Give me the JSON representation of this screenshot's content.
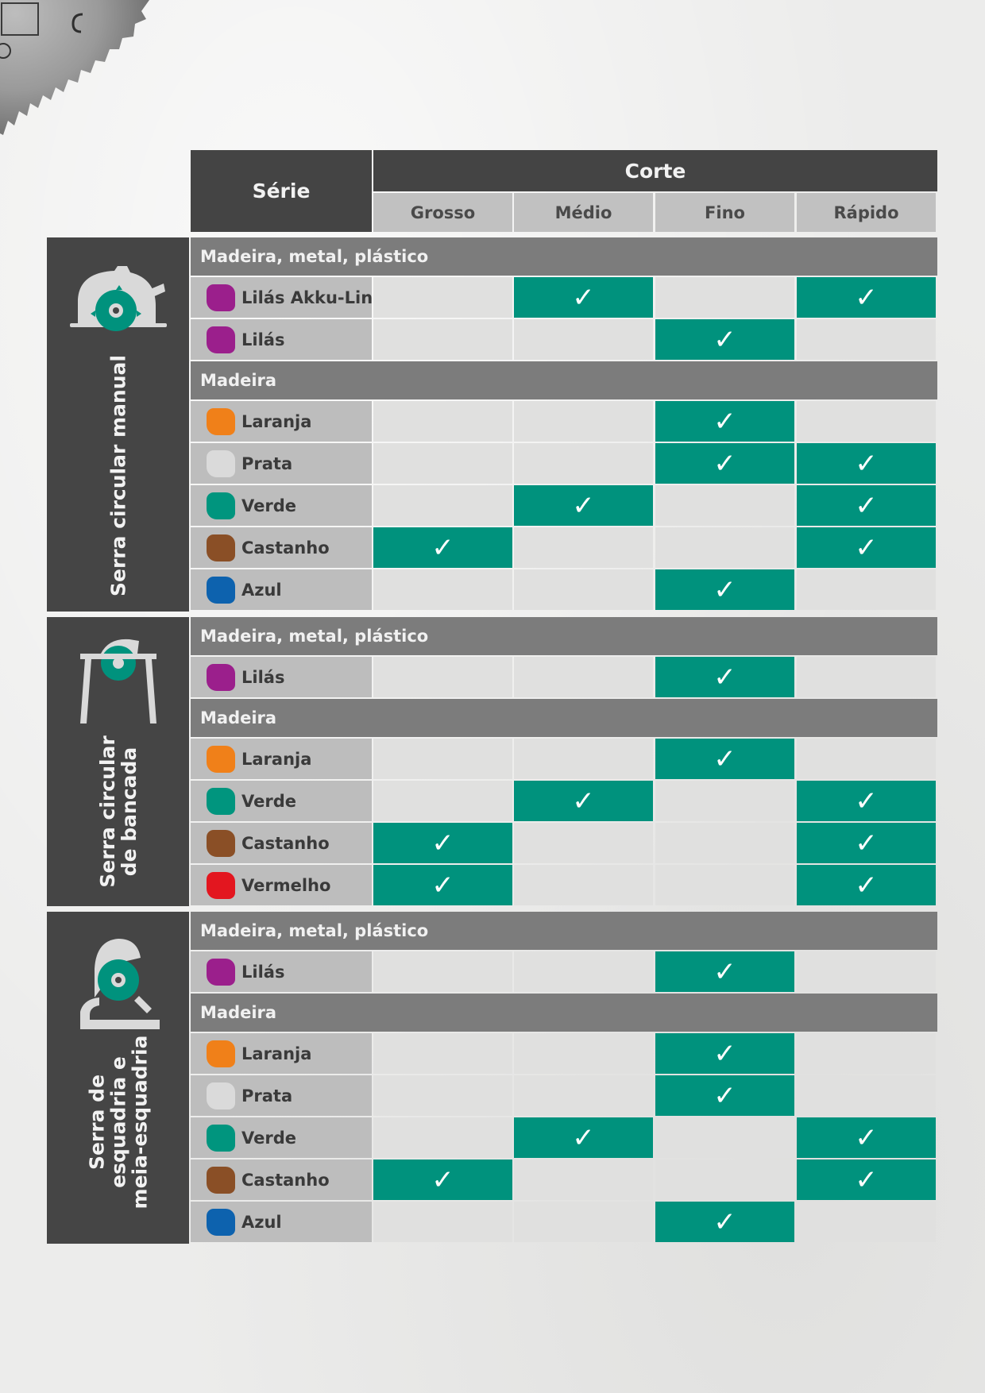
{
  "table": {
    "serie_header": "Série",
    "corte_header": "Corte",
    "cut_types": [
      "Grosso",
      "Médio",
      "Fino",
      "Rápido"
    ],
    "check_symbol": "✓"
  },
  "colors": {
    "header_dark": "#444444",
    "subheader": "#c1c1c1",
    "group_bar": "#7c7c7c",
    "series_cell": "#bdbdbd",
    "empty_cell": "#e0e0df",
    "check_green": "#00927d",
    "Lilás": "#9b1f8c",
    "Laranja": "#f08019",
    "Prata": "#dadada",
    "Verde": "#00957e",
    "Castanho": "#8a4f26",
    "Azul": "#0d62ae",
    "Vermelho": "#e3161f"
  },
  "sections": [
    {
      "label": "Serra circular manual",
      "icon": "handheld-circular-saw-icon",
      "groups": [
        {
          "title": "Madeira, metal, plástico",
          "rows": [
            {
              "name": "Lilás Akku-Line",
              "swatch": "Lilás",
              "cuts": [
                false,
                true,
                false,
                true
              ]
            },
            {
              "name": "Lilás",
              "swatch": "Lilás",
              "cuts": [
                false,
                false,
                true,
                false
              ]
            }
          ]
        },
        {
          "title": "Madeira",
          "rows": [
            {
              "name": "Laranja",
              "swatch": "Laranja",
              "cuts": [
                false,
                false,
                true,
                false
              ]
            },
            {
              "name": "Prata",
              "swatch": "Prata",
              "cuts": [
                false,
                false,
                true,
                true
              ]
            },
            {
              "name": "Verde",
              "swatch": "Verde",
              "cuts": [
                false,
                true,
                false,
                true
              ]
            },
            {
              "name": "Castanho",
              "swatch": "Castanho",
              "cuts": [
                true,
                false,
                false,
                true
              ]
            },
            {
              "name": "Azul",
              "swatch": "Azul",
              "cuts": [
                false,
                false,
                true,
                false
              ]
            }
          ]
        }
      ]
    },
    {
      "label": "Serra circular\nde bancada",
      "icon": "table-saw-icon",
      "groups": [
        {
          "title": "Madeira, metal, plástico",
          "rows": [
            {
              "name": "Lilás",
              "swatch": "Lilás",
              "cuts": [
                false,
                false,
                true,
                false
              ]
            }
          ]
        },
        {
          "title": "Madeira",
          "rows": [
            {
              "name": "Laranja",
              "swatch": "Laranja",
              "cuts": [
                false,
                false,
                true,
                false
              ]
            },
            {
              "name": "Verde",
              "swatch": "Verde",
              "cuts": [
                false,
                true,
                false,
                true
              ]
            },
            {
              "name": "Castanho",
              "swatch": "Castanho",
              "cuts": [
                true,
                false,
                false,
                true
              ]
            },
            {
              "name": "Vermelho",
              "swatch": "Vermelho",
              "cuts": [
                true,
                false,
                false,
                true
              ]
            }
          ]
        }
      ]
    },
    {
      "label": "Serra de\nesquadria e\nmeia-esquadria",
      "icon": "miter-saw-icon",
      "groups": [
        {
          "title": "Madeira, metal, plástico",
          "rows": [
            {
              "name": "Lilás",
              "swatch": "Lilás",
              "cuts": [
                false,
                false,
                true,
                false
              ]
            }
          ]
        },
        {
          "title": "Madeira",
          "rows": [
            {
              "name": "Laranja",
              "swatch": "Laranja",
              "cuts": [
                false,
                false,
                true,
                false
              ]
            },
            {
              "name": "Prata",
              "swatch": "Prata",
              "cuts": [
                false,
                false,
                true,
                false
              ]
            },
            {
              "name": "Verde",
              "swatch": "Verde",
              "cuts": [
                false,
                true,
                false,
                true
              ]
            },
            {
              "name": "Castanho",
              "swatch": "Castanho",
              "cuts": [
                true,
                false,
                false,
                true
              ]
            },
            {
              "name": "Azul",
              "swatch": "Azul",
              "cuts": [
                false,
                false,
                true,
                false
              ]
            }
          ]
        }
      ]
    }
  ]
}
